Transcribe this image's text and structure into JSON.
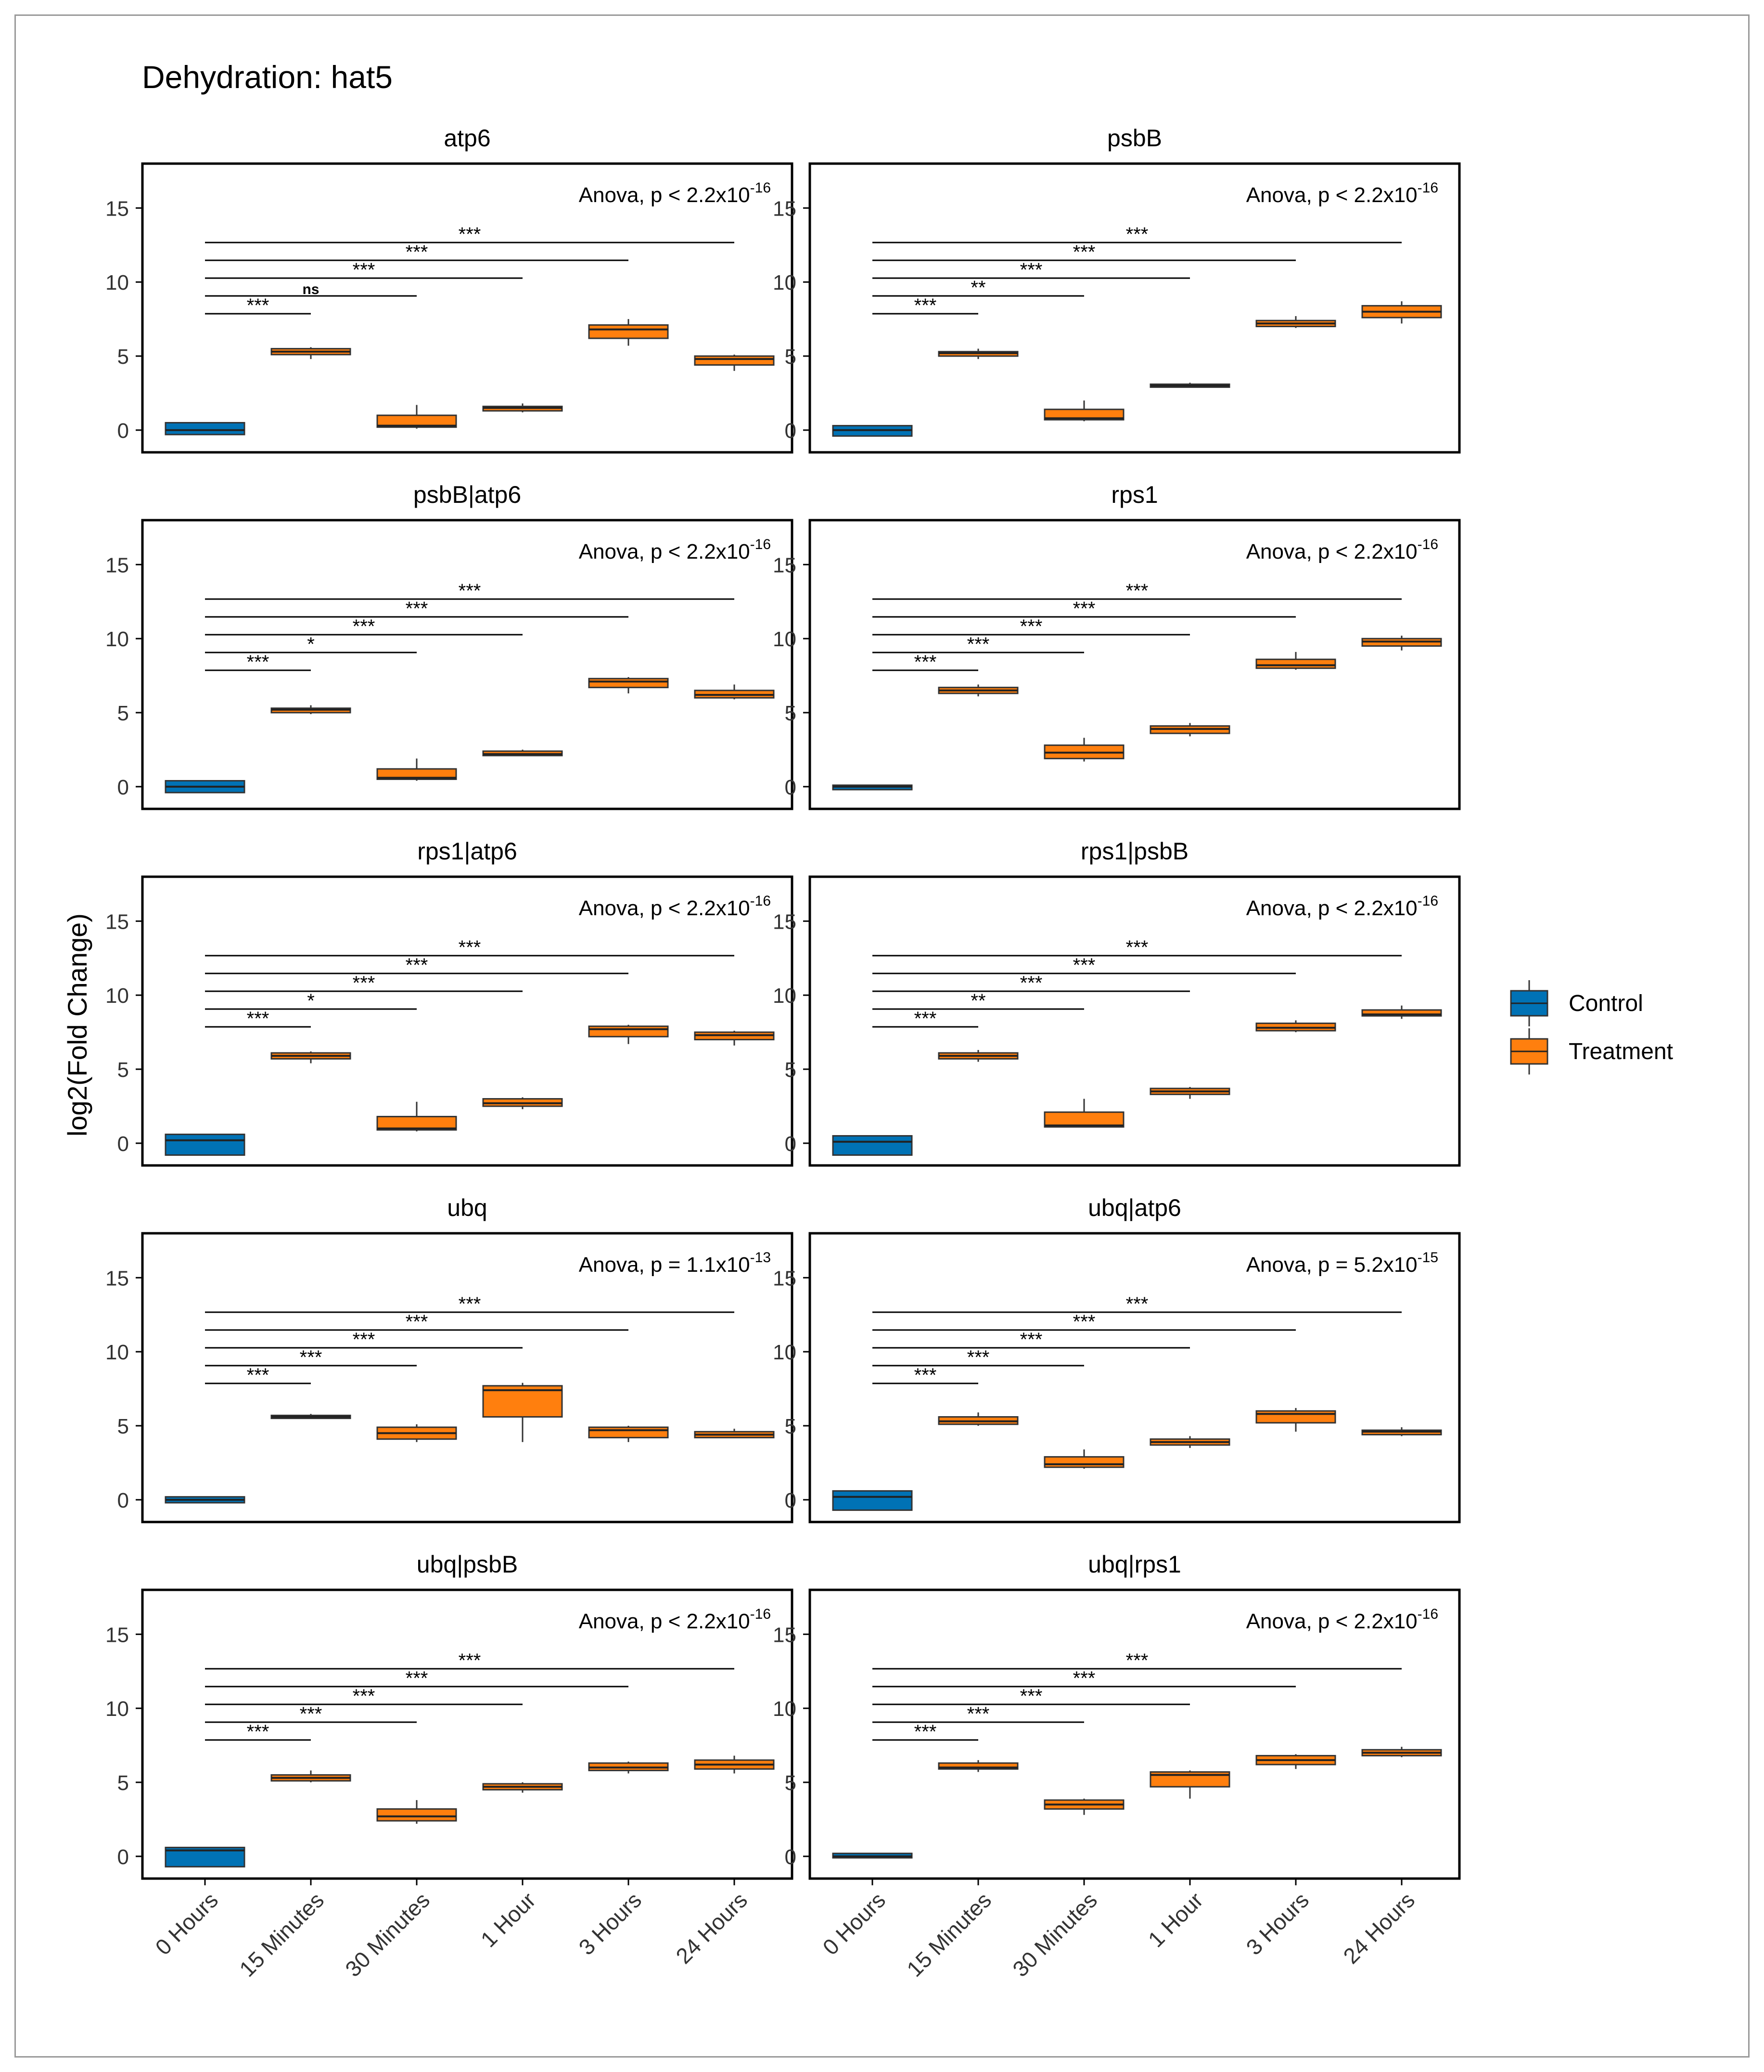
{
  "chart_data": {
    "type": "box",
    "title": "Dehydration: hat5",
    "ylabel": "log2(Fold Change)",
    "xlabel": "",
    "ylim": [
      -1.5,
      18
    ],
    "yticks": [
      "0",
      "5",
      "10",
      "15"
    ],
    "categories": [
      "0 Hours",
      "15 Minutes",
      "30 Minutes",
      "1 Hour",
      "3 Hours",
      "24 Hours"
    ],
    "legend": {
      "position": "right",
      "items": [
        {
          "name": "Control",
          "color": "#0072B5"
        },
        {
          "name": "Treatment",
          "color": "#FF7F0E"
        }
      ]
    },
    "colors": {
      "control": "#0072B5",
      "treatment": "#FF7F0E",
      "border": "#000000",
      "text": "#333333"
    },
    "panels": [
      {
        "title": "atp6",
        "anova_prefix": "Anova, p < 2.2x10",
        "anova_exp": "-16",
        "boxes": [
          {
            "group": "Control",
            "min": -0.3,
            "q1": -0.3,
            "median": 0.0,
            "q3": 0.5,
            "max": 0.5
          },
          {
            "group": "Treatment",
            "min": 4.8,
            "q1": 5.1,
            "median": 5.3,
            "q3": 5.5,
            "max": 5.6
          },
          {
            "group": "Treatment",
            "min": 0.1,
            "q1": 0.2,
            "median": 0.3,
            "q3": 1.0,
            "max": 1.7
          },
          {
            "group": "Treatment",
            "min": 1.2,
            "q1": 1.3,
            "median": 1.5,
            "q3": 1.6,
            "max": 1.8
          },
          {
            "group": "Treatment",
            "min": 5.7,
            "q1": 6.2,
            "median": 6.8,
            "q3": 7.1,
            "max": 7.5
          },
          {
            "group": "Treatment",
            "min": 4.0,
            "q1": 4.4,
            "median": 4.8,
            "q3": 5.0,
            "max": 5.1
          }
        ],
        "comparisons": [
          {
            "to": 1,
            "label": "***"
          },
          {
            "to": 2,
            "label": "ns"
          },
          {
            "to": 3,
            "label": "***"
          },
          {
            "to": 4,
            "label": "***"
          },
          {
            "to": 5,
            "label": "***"
          }
        ]
      },
      {
        "title": "psbB",
        "anova_prefix": "Anova, p < 2.2x10",
        "anova_exp": "-16",
        "boxes": [
          {
            "group": "Control",
            "min": -0.4,
            "q1": -0.4,
            "median": 0.0,
            "q3": 0.3,
            "max": 0.3
          },
          {
            "group": "Treatment",
            "min": 4.8,
            "q1": 5.0,
            "median": 5.2,
            "q3": 5.3,
            "max": 5.5
          },
          {
            "group": "Treatment",
            "min": 0.6,
            "q1": 0.7,
            "median": 0.8,
            "q3": 1.4,
            "max": 2.0
          },
          {
            "group": "Treatment",
            "min": 2.9,
            "q1": 2.9,
            "median": 3.0,
            "q3": 3.1,
            "max": 3.2
          },
          {
            "group": "Treatment",
            "min": 6.9,
            "q1": 7.0,
            "median": 7.2,
            "q3": 7.4,
            "max": 7.7
          },
          {
            "group": "Treatment",
            "min": 7.2,
            "q1": 7.6,
            "median": 8.0,
            "q3": 8.4,
            "max": 8.7
          }
        ],
        "comparisons": [
          {
            "to": 1,
            "label": "***"
          },
          {
            "to": 2,
            "label": "**"
          },
          {
            "to": 3,
            "label": "***"
          },
          {
            "to": 4,
            "label": "***"
          },
          {
            "to": 5,
            "label": "***"
          }
        ]
      },
      {
        "title": "psbB|atp6",
        "anova_prefix": "Anova, p < 2.2x10",
        "anova_exp": "-16",
        "boxes": [
          {
            "group": "Control",
            "min": -0.4,
            "q1": -0.4,
            "median": 0.0,
            "q3": 0.4,
            "max": 0.4
          },
          {
            "group": "Treatment",
            "min": 4.9,
            "q1": 5.0,
            "median": 5.2,
            "q3": 5.3,
            "max": 5.5
          },
          {
            "group": "Treatment",
            "min": 0.4,
            "q1": 0.5,
            "median": 0.6,
            "q3": 1.2,
            "max": 1.9
          },
          {
            "group": "Treatment",
            "min": 2.1,
            "q1": 2.1,
            "median": 2.2,
            "q3": 2.4,
            "max": 2.5
          },
          {
            "group": "Treatment",
            "min": 6.3,
            "q1": 6.7,
            "median": 7.1,
            "q3": 7.3,
            "max": 7.4
          },
          {
            "group": "Treatment",
            "min": 5.9,
            "q1": 6.0,
            "median": 6.2,
            "q3": 6.5,
            "max": 6.9
          }
        ],
        "comparisons": [
          {
            "to": 1,
            "label": "***"
          },
          {
            "to": 2,
            "label": "*"
          },
          {
            "to": 3,
            "label": "***"
          },
          {
            "to": 4,
            "label": "***"
          },
          {
            "to": 5,
            "label": "***"
          }
        ]
      },
      {
        "title": "rps1",
        "anova_prefix": "Anova, p < 2.2x10",
        "anova_exp": "-16",
        "boxes": [
          {
            "group": "Control",
            "min": -0.2,
            "q1": -0.2,
            "median": 0.0,
            "q3": 0.1,
            "max": 0.1
          },
          {
            "group": "Treatment",
            "min": 6.1,
            "q1": 6.3,
            "median": 6.5,
            "q3": 6.7,
            "max": 6.9
          },
          {
            "group": "Treatment",
            "min": 1.7,
            "q1": 1.9,
            "median": 2.3,
            "q3": 2.8,
            "max": 3.3
          },
          {
            "group": "Treatment",
            "min": 3.4,
            "q1": 3.6,
            "median": 3.9,
            "q3": 4.1,
            "max": 4.3
          },
          {
            "group": "Treatment",
            "min": 7.9,
            "q1": 8.0,
            "median": 8.2,
            "q3": 8.6,
            "max": 9.1
          },
          {
            "group": "Treatment",
            "min": 9.2,
            "q1": 9.5,
            "median": 9.8,
            "q3": 10.0,
            "max": 10.2
          }
        ],
        "comparisons": [
          {
            "to": 1,
            "label": "***"
          },
          {
            "to": 2,
            "label": "***"
          },
          {
            "to": 3,
            "label": "***"
          },
          {
            "to": 4,
            "label": "***"
          },
          {
            "to": 5,
            "label": "***"
          }
        ]
      },
      {
        "title": "rps1|atp6",
        "anova_prefix": "Anova, p < 2.2x10",
        "anova_exp": "-16",
        "boxes": [
          {
            "group": "Control",
            "min": -0.8,
            "q1": -0.8,
            "median": 0.2,
            "q3": 0.6,
            "max": 0.6
          },
          {
            "group": "Treatment",
            "min": 5.4,
            "q1": 5.7,
            "median": 5.9,
            "q3": 6.1,
            "max": 6.2
          },
          {
            "group": "Treatment",
            "min": 0.8,
            "q1": 0.9,
            "median": 1.0,
            "q3": 1.8,
            "max": 2.8
          },
          {
            "group": "Treatment",
            "min": 2.3,
            "q1": 2.5,
            "median": 2.7,
            "q3": 3.0,
            "max": 3.1
          },
          {
            "group": "Treatment",
            "min": 6.7,
            "q1": 7.2,
            "median": 7.7,
            "q3": 7.9,
            "max": 8.0
          },
          {
            "group": "Treatment",
            "min": 6.6,
            "q1": 7.0,
            "median": 7.3,
            "q3": 7.5,
            "max": 7.6
          }
        ],
        "comparisons": [
          {
            "to": 1,
            "label": "***"
          },
          {
            "to": 2,
            "label": "*"
          },
          {
            "to": 3,
            "label": "***"
          },
          {
            "to": 4,
            "label": "***"
          },
          {
            "to": 5,
            "label": "***"
          }
        ]
      },
      {
        "title": "rps1|psbB",
        "anova_prefix": "Anova, p < 2.2x10",
        "anova_exp": "-16",
        "boxes": [
          {
            "group": "Control",
            "min": -0.8,
            "q1": -0.8,
            "median": 0.1,
            "q3": 0.5,
            "max": 0.5
          },
          {
            "group": "Treatment",
            "min": 5.5,
            "q1": 5.7,
            "median": 5.9,
            "q3": 6.1,
            "max": 6.3
          },
          {
            "group": "Treatment",
            "min": 1.1,
            "q1": 1.1,
            "median": 1.2,
            "q3": 2.1,
            "max": 3.0
          },
          {
            "group": "Treatment",
            "min": 3.0,
            "q1": 3.3,
            "median": 3.5,
            "q3": 3.7,
            "max": 3.8
          },
          {
            "group": "Treatment",
            "min": 7.5,
            "q1": 7.6,
            "median": 7.8,
            "q3": 8.1,
            "max": 8.3
          },
          {
            "group": "Treatment",
            "min": 8.4,
            "q1": 8.6,
            "median": 8.7,
            "q3": 9.0,
            "max": 9.3
          }
        ],
        "comparisons": [
          {
            "to": 1,
            "label": "***"
          },
          {
            "to": 2,
            "label": "**"
          },
          {
            "to": 3,
            "label": "***"
          },
          {
            "to": 4,
            "label": "***"
          },
          {
            "to": 5,
            "label": "***"
          }
        ]
      },
      {
        "title": "ubq",
        "anova_prefix": "Anova, p = 1.1x10",
        "anova_exp": "-13",
        "boxes": [
          {
            "group": "Control",
            "min": -0.2,
            "q1": -0.2,
            "median": 0.0,
            "q3": 0.2,
            "max": 0.2
          },
          {
            "group": "Treatment",
            "min": 5.5,
            "q1": 5.5,
            "median": 5.6,
            "q3": 5.7,
            "max": 5.8
          },
          {
            "group": "Treatment",
            "min": 3.9,
            "q1": 4.1,
            "median": 4.5,
            "q3": 4.9,
            "max": 5.1
          },
          {
            "group": "Treatment",
            "min": 3.9,
            "q1": 5.6,
            "median": 7.4,
            "q3": 7.7,
            "max": 7.9
          },
          {
            "group": "Treatment",
            "min": 3.9,
            "q1": 4.2,
            "median": 4.7,
            "q3": 4.9,
            "max": 5.0
          },
          {
            "group": "Treatment",
            "min": 4.2,
            "q1": 4.2,
            "median": 4.4,
            "q3": 4.6,
            "max": 4.8
          }
        ],
        "comparisons": [
          {
            "to": 1,
            "label": "***"
          },
          {
            "to": 2,
            "label": "***"
          },
          {
            "to": 3,
            "label": "***"
          },
          {
            "to": 4,
            "label": "***"
          },
          {
            "to": 5,
            "label": "***"
          }
        ]
      },
      {
        "title": "ubq|atp6",
        "anova_prefix": "Anova, p = 5.2x10",
        "anova_exp": "-15",
        "boxes": [
          {
            "group": "Control",
            "min": -0.7,
            "q1": -0.7,
            "median": 0.2,
            "q3": 0.6,
            "max": 0.6
          },
          {
            "group": "Treatment",
            "min": 5.0,
            "q1": 5.1,
            "median": 5.3,
            "q3": 5.6,
            "max": 5.9
          },
          {
            "group": "Treatment",
            "min": 2.1,
            "q1": 2.2,
            "median": 2.4,
            "q3": 2.9,
            "max": 3.4
          },
          {
            "group": "Treatment",
            "min": 3.5,
            "q1": 3.7,
            "median": 3.9,
            "q3": 4.1,
            "max": 4.3
          },
          {
            "group": "Treatment",
            "min": 4.6,
            "q1": 5.2,
            "median": 5.8,
            "q3": 6.0,
            "max": 6.2
          },
          {
            "group": "Treatment",
            "min": 4.3,
            "q1": 4.4,
            "median": 4.6,
            "q3": 4.7,
            "max": 4.9
          }
        ],
        "comparisons": [
          {
            "to": 1,
            "label": "***"
          },
          {
            "to": 2,
            "label": "***"
          },
          {
            "to": 3,
            "label": "***"
          },
          {
            "to": 4,
            "label": "***"
          },
          {
            "to": 5,
            "label": "***"
          }
        ]
      },
      {
        "title": "ubq|psbB",
        "anova_prefix": "Anova, p < 2.2x10",
        "anova_exp": "-16",
        "boxes": [
          {
            "group": "Control",
            "min": -0.7,
            "q1": -0.7,
            "median": 0.4,
            "q3": 0.6,
            "max": 0.6
          },
          {
            "group": "Treatment",
            "min": 5.0,
            "q1": 5.1,
            "median": 5.3,
            "q3": 5.5,
            "max": 5.8
          },
          {
            "group": "Treatment",
            "min": 2.2,
            "q1": 2.4,
            "median": 2.7,
            "q3": 3.2,
            "max": 3.8
          },
          {
            "group": "Treatment",
            "min": 4.3,
            "q1": 4.5,
            "median": 4.7,
            "q3": 4.9,
            "max": 5.0
          },
          {
            "group": "Treatment",
            "min": 5.6,
            "q1": 5.8,
            "median": 6.0,
            "q3": 6.3,
            "max": 6.4
          },
          {
            "group": "Treatment",
            "min": 5.6,
            "q1": 5.9,
            "median": 6.2,
            "q3": 6.5,
            "max": 6.8
          }
        ],
        "comparisons": [
          {
            "to": 1,
            "label": "***"
          },
          {
            "to": 2,
            "label": "***"
          },
          {
            "to": 3,
            "label": "***"
          },
          {
            "to": 4,
            "label": "***"
          },
          {
            "to": 5,
            "label": "***"
          }
        ]
      },
      {
        "title": "ubq|rps1",
        "anova_prefix": "Anova, p < 2.2x10",
        "anova_exp": "-16",
        "boxes": [
          {
            "group": "Control",
            "min": -0.1,
            "q1": -0.1,
            "median": 0.0,
            "q3": 0.2,
            "max": 0.2
          },
          {
            "group": "Treatment",
            "min": 5.7,
            "q1": 5.9,
            "median": 6.0,
            "q3": 6.3,
            "max": 6.5
          },
          {
            "group": "Treatment",
            "min": 2.8,
            "q1": 3.2,
            "median": 3.5,
            "q3": 3.8,
            "max": 3.9
          },
          {
            "group": "Treatment",
            "min": 3.9,
            "q1": 4.7,
            "median": 5.5,
            "q3": 5.7,
            "max": 5.8
          },
          {
            "group": "Treatment",
            "min": 5.9,
            "q1": 6.2,
            "median": 6.5,
            "q3": 6.8,
            "max": 6.9
          },
          {
            "group": "Treatment",
            "min": 6.7,
            "q1": 6.8,
            "median": 7.0,
            "q3": 7.2,
            "max": 7.4
          }
        ],
        "comparisons": [
          {
            "to": 1,
            "label": "***"
          },
          {
            "to": 2,
            "label": "***"
          },
          {
            "to": 3,
            "label": "***"
          },
          {
            "to": 4,
            "label": "***"
          },
          {
            "to": 5,
            "label": "***"
          }
        ]
      }
    ]
  }
}
